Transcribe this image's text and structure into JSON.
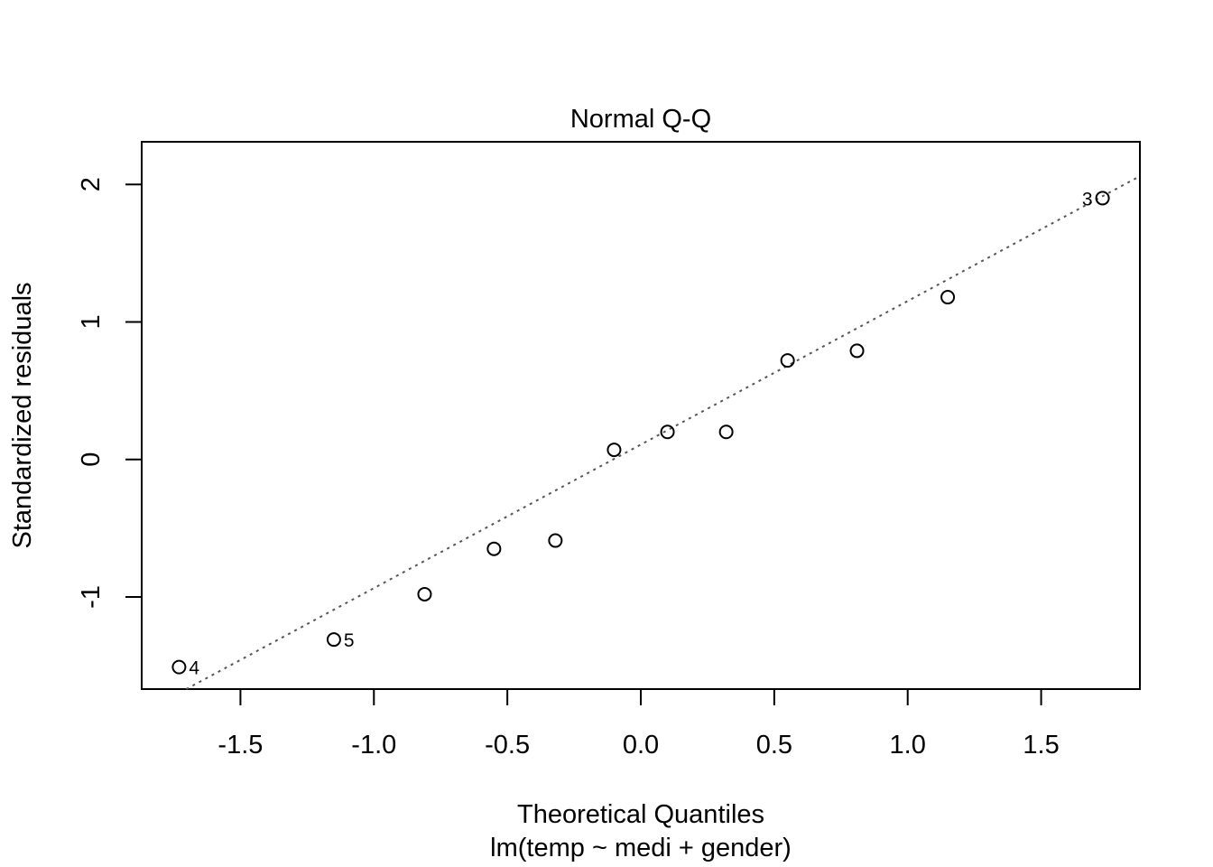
{
  "chart_data": {
    "type": "scatter",
    "title": "Normal Q-Q",
    "xlabel": "Theoretical Quantiles",
    "subtitle": "lm(temp ~ medi + gender)",
    "ylabel": "Standardized residuals",
    "xlim": [
      -1.87,
      1.87
    ],
    "ylim": [
      -1.67,
      2.31
    ],
    "xticks": [
      -1.5,
      -1.0,
      -0.5,
      0.0,
      0.5,
      1.0,
      1.5
    ],
    "xtick_labels": [
      "-1.5",
      "-1.0",
      "-0.5",
      "0.0",
      "0.5",
      "1.0",
      "1.5"
    ],
    "yticks": [
      -1,
      0,
      1,
      2
    ],
    "ytick_labels": [
      "-1",
      "0",
      "1",
      "2"
    ],
    "grid": false,
    "points": [
      {
        "x": -1.73,
        "y": -1.51,
        "label": "4"
      },
      {
        "x": -1.15,
        "y": -1.31,
        "label": "5"
      },
      {
        "x": -0.81,
        "y": -0.98,
        "label": ""
      },
      {
        "x": -0.55,
        "y": -0.65,
        "label": ""
      },
      {
        "x": -0.32,
        "y": -0.59,
        "label": ""
      },
      {
        "x": -0.1,
        "y": 0.07,
        "label": ""
      },
      {
        "x": 0.1,
        "y": 0.2,
        "label": ""
      },
      {
        "x": 0.32,
        "y": 0.2,
        "label": ""
      },
      {
        "x": 0.55,
        "y": 0.72,
        "label": ""
      },
      {
        "x": 0.81,
        "y": 0.79,
        "label": ""
      },
      {
        "x": 1.15,
        "y": 1.18,
        "label": ""
      },
      {
        "x": 1.73,
        "y": 1.9,
        "label": "3"
      }
    ],
    "reference_line": {
      "intercept": 0.108,
      "slope": 1.044,
      "style": "dotted",
      "color": "#555555"
    }
  }
}
